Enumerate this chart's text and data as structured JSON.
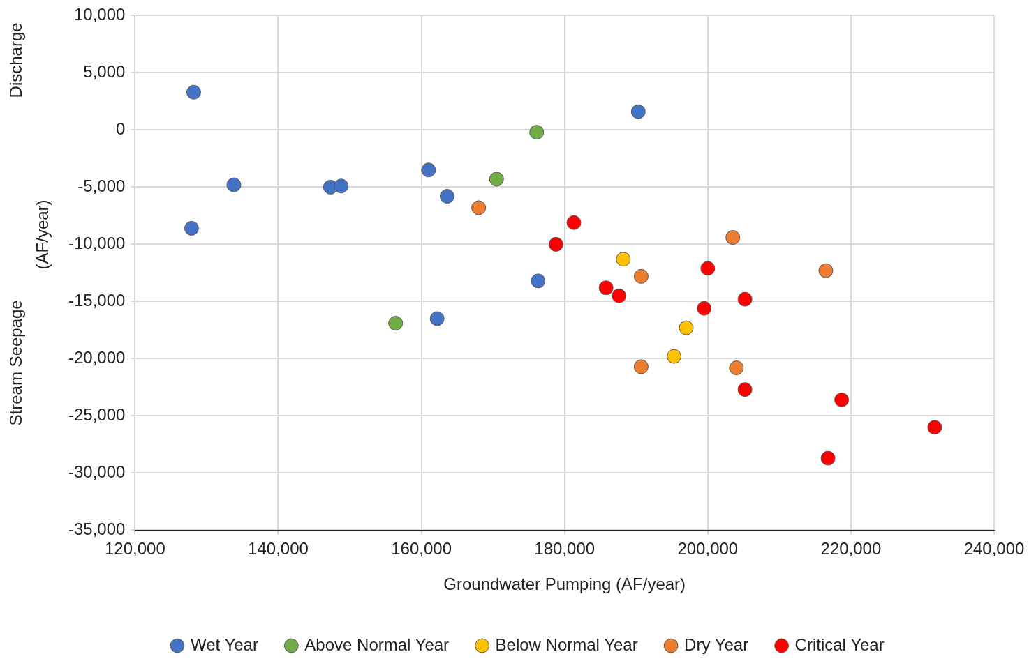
{
  "chart_data": {
    "type": "scatter",
    "xlabel": "Groundwater Pumping (AF/year)",
    "ylabel": "(AF/year)",
    "annotations": [
      "Discharge",
      "Stream Seepage"
    ],
    "xlim": [
      120000,
      240000
    ],
    "xticks": [
      {
        "value": 120000,
        "label": "120,000"
      },
      {
        "value": 140000,
        "label": "140,000"
      },
      {
        "value": 160000,
        "label": "160,000"
      },
      {
        "value": 180000,
        "label": "180,000"
      },
      {
        "value": 200000,
        "label": "200,000"
      },
      {
        "value": 220000,
        "label": "220,000"
      },
      {
        "value": 240000,
        "label": "240,000"
      }
    ],
    "ylim": [
      -35000,
      10000
    ],
    "yticks": [
      {
        "value": -35000,
        "label": "-35,000"
      },
      {
        "value": -30000,
        "label": "-30,000"
      },
      {
        "value": -25000,
        "label": "-25,000"
      },
      {
        "value": -20000,
        "label": "-20,000"
      },
      {
        "value": -15000,
        "label": "-15,000"
      },
      {
        "value": -10000,
        "label": "-10,000"
      },
      {
        "value": -5000,
        "label": "-5,000"
      },
      {
        "value": 0,
        "label": "0"
      },
      {
        "value": 5000,
        "label": "5,000"
      },
      {
        "value": 10000,
        "label": "10,000"
      }
    ],
    "grid": true,
    "legend": "bottom",
    "marker": "circle",
    "series": [
      {
        "name": "Wet Year",
        "color": "#4472c4",
        "x": [
          128200,
          190300,
          133800,
          127900,
          147300,
          148800,
          161000,
          163600,
          176300,
          162200
        ],
        "values": [
          3300,
          1600,
          -4800,
          -8600,
          -5000,
          -4900,
          -3500,
          -5800,
          -13200,
          -16500
        ]
      },
      {
        "name": "Above Normal Year",
        "color": "#70ad47",
        "x": [
          176100,
          170500,
          156400
        ],
        "values": [
          -200,
          -4300,
          -16900
        ]
      },
      {
        "name": "Below Normal Year",
        "color": "#ffc000",
        "x": [
          188200,
          197000,
          195300
        ],
        "values": [
          -11300,
          -17300,
          -19800
        ]
      },
      {
        "name": "Dry Year",
        "color": "#ed7d31",
        "x": [
          168000,
          203500,
          190700,
          216500,
          190700,
          204000
        ],
        "values": [
          -6800,
          -9400,
          -12800,
          -12300,
          -20700,
          -20800
        ]
      },
      {
        "name": "Critical Year",
        "color": "#ff0000",
        "x": [
          181300,
          178800,
          200000,
          185800,
          187600,
          199500,
          205200,
          205200,
          218700,
          231700,
          216800
        ],
        "values": [
          -8100,
          -10000,
          -12100,
          -13800,
          -14500,
          -15600,
          -14800,
          -22700,
          -23600,
          -26000,
          -28700
        ]
      }
    ]
  }
}
